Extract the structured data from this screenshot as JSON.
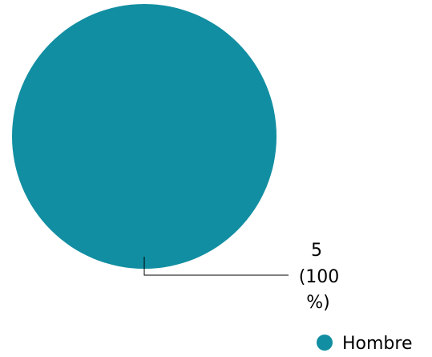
{
  "chart_data": {
    "type": "pie",
    "categories": [
      "Hombre"
    ],
    "values": [
      5
    ],
    "labels": {
      "value": "5",
      "percent_line1": "(100",
      "percent_line2": "%)"
    },
    "legend": {
      "position": "bottom-right",
      "items": [
        {
          "label": "Hombre",
          "color": "#118ea1"
        }
      ]
    },
    "colors": [
      "#118ea1"
    ]
  }
}
